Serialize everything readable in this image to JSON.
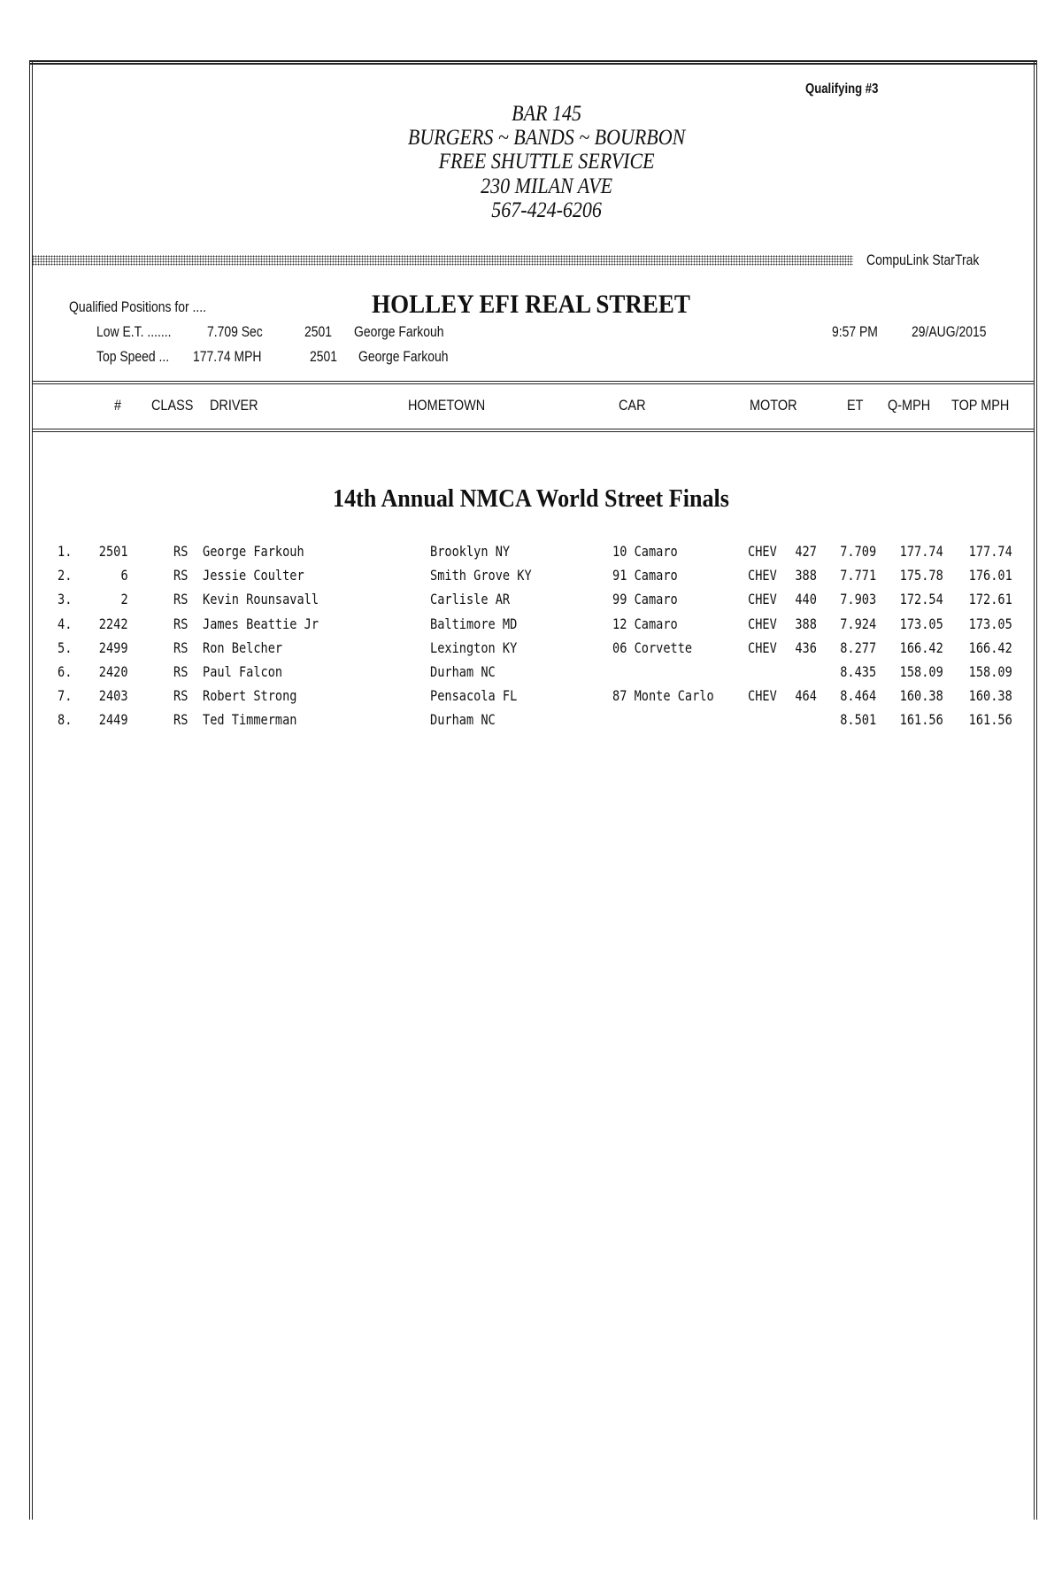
{
  "qualifying_label": "Qualifying #3",
  "ad_lines": [
    "BAR 145",
    "BURGERS ~ BANDS ~ BOURBON",
    "FREE SHUTTLE SERVICE",
    "230 MILAN AVE",
    "567-424-6206"
  ],
  "system_name": "CompuLink  StarTrak",
  "class_title": "HOLLEY EFI REAL STREET",
  "qualified_label": "Qualified Positions for ....",
  "low_et": {
    "label": "Low E.T. .......",
    "value": "7.709  Sec",
    "number": "2501",
    "driver": "George Farkouh"
  },
  "top_speed": {
    "label": "Top Speed ...",
    "value": "177.74  MPH",
    "number": "2501",
    "driver": "George Farkouh"
  },
  "time": "9:57 PM",
  "date": "29/AUG/2015",
  "columns": {
    "num": "#",
    "class": "CLASS",
    "driver": "DRIVER",
    "hometown": "HOMETOWN",
    "car": "CAR",
    "motor": "MOTOR",
    "et": "ET",
    "qmph": "Q-MPH",
    "topmph": "TOP MPH"
  },
  "event_title": "14th Annual NMCA World Street Finals",
  "rows": [
    {
      "pos": "1.",
      "num": "2501",
      "class": "RS",
      "driver": "George Farkouh",
      "hometown": "Brooklyn NY",
      "car": "10 Camaro",
      "make": "CHEV",
      "cid": "427",
      "et": "7.709",
      "qmph": "177.74",
      "topmph": "177.74"
    },
    {
      "pos": "2.",
      "num": "6",
      "class": "RS",
      "driver": "Jessie Coulter",
      "hometown": "Smith Grove KY",
      "car": "91 Camaro",
      "make": "CHEV",
      "cid": "388",
      "et": "7.771",
      "qmph": "175.78",
      "topmph": "176.01"
    },
    {
      "pos": "3.",
      "num": "2",
      "class": "RS",
      "driver": "Kevin Rounsavall",
      "hometown": "Carlisle AR",
      "car": "99 Camaro",
      "make": "CHEV",
      "cid": "440",
      "et": "7.903",
      "qmph": "172.54",
      "topmph": "172.61"
    },
    {
      "pos": "4.",
      "num": "2242",
      "class": "RS",
      "driver": "James Beattie Jr",
      "hometown": "Baltimore MD",
      "car": "12 Camaro",
      "make": "CHEV",
      "cid": "388",
      "et": "7.924",
      "qmph": "173.05",
      "topmph": "173.05"
    },
    {
      "pos": "5.",
      "num": "2499",
      "class": "RS",
      "driver": "Ron Belcher",
      "hometown": "Lexington KY",
      "car": "06 Corvette",
      "make": "CHEV",
      "cid": "436",
      "et": "8.277",
      "qmph": "166.42",
      "topmph": "166.42"
    },
    {
      "pos": "6.",
      "num": "2420",
      "class": "RS",
      "driver": "Paul Falcon",
      "hometown": "Durham NC",
      "car": "",
      "make": "",
      "cid": "",
      "et": "8.435",
      "qmph": "158.09",
      "topmph": "158.09"
    },
    {
      "pos": "7.",
      "num": "2403",
      "class": "RS",
      "driver": "Robert Strong",
      "hometown": "Pensacola FL",
      "car": "87 Monte Carlo",
      "make": "CHEV",
      "cid": "464",
      "et": "8.464",
      "qmph": "160.38",
      "topmph": "160.38"
    },
    {
      "pos": "8.",
      "num": "2449",
      "class": "RS",
      "driver": "Ted Timmerman",
      "hometown": "Durham NC",
      "car": "",
      "make": "",
      "cid": "",
      "et": "8.501",
      "qmph": "161.56",
      "topmph": "161.56"
    }
  ]
}
